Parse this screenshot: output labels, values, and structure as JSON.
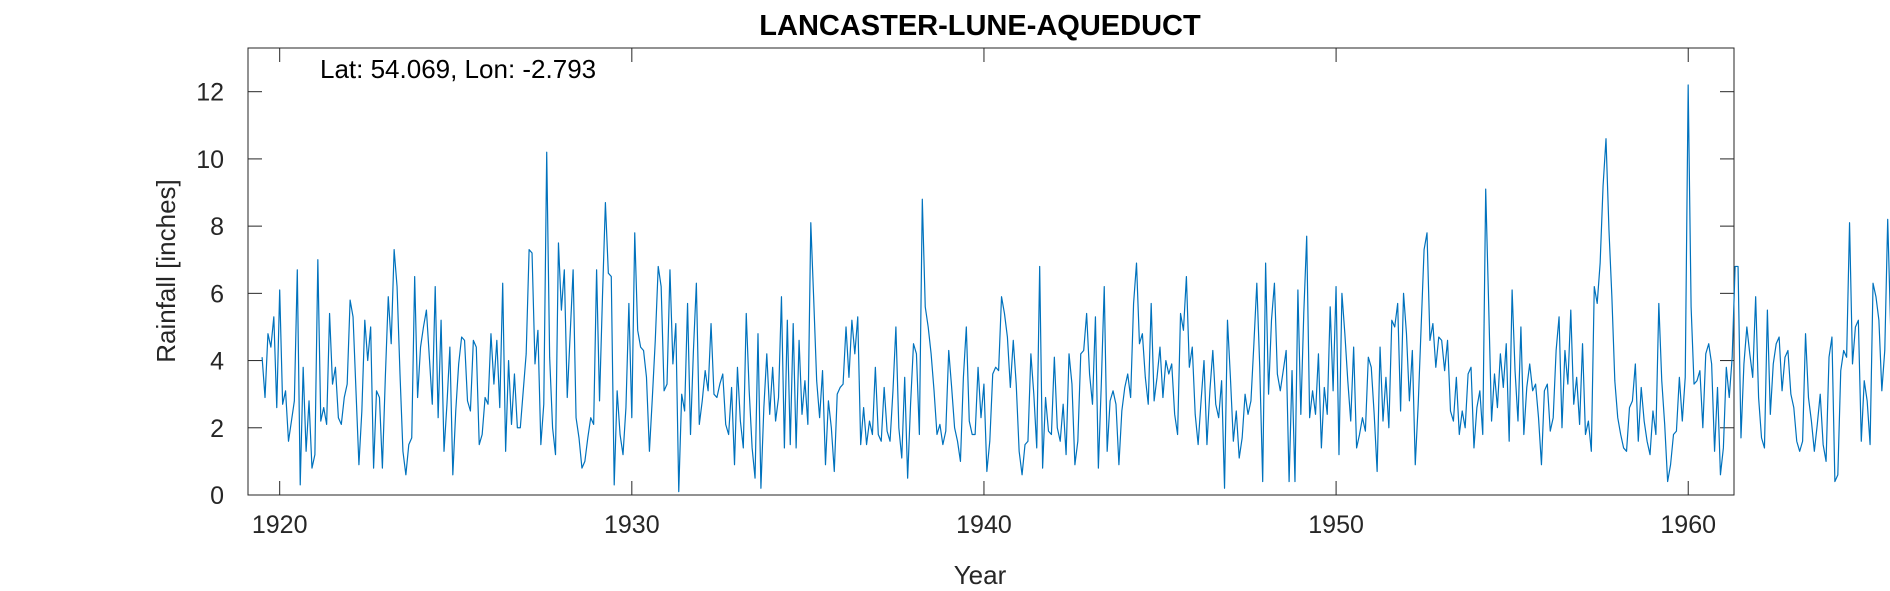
{
  "chart_data": {
    "type": "line",
    "title": "LANCASTER-LUNE-AQUEDUCT",
    "xlabel": "Year",
    "ylabel": "Rainfall [inches]",
    "annotation": "Lat: 54.069, Lon: -2.793",
    "xlim": [
      1919.1,
      1961.3
    ],
    "ylim": [
      0,
      13.3
    ],
    "xticks": [
      1920,
      1930,
      1940,
      1950,
      1960
    ],
    "yticks": [
      0,
      2,
      4,
      6,
      8,
      10,
      12
    ],
    "grid": false,
    "line_color": "#0072BD",
    "series": [
      {
        "x_start": 1919.5,
        "x_step": 0.08333,
        "values": [
          4.1,
          2.9,
          4.8,
          4.4,
          5.3,
          2.6,
          6.1,
          2.7,
          3.1,
          1.6,
          2.2,
          2.8,
          6.7,
          0.3,
          3.8,
          1.3,
          2.8,
          0.8,
          1.2,
          7.0,
          2.2,
          2.6,
          2.1,
          5.4,
          3.3,
          3.8,
          2.3,
          2.1,
          2.9,
          3.3,
          5.8,
          5.3,
          3.1,
          0.9,
          2.5,
          5.2,
          4.0,
          5.0,
          0.8,
          3.1,
          2.9,
          0.8,
          3.5,
          5.9,
          4.5,
          7.3,
          6.2,
          3.6,
          1.3,
          0.6,
          1.5,
          1.7,
          6.5,
          2.9,
          4.4,
          5.0,
          5.5,
          4.1,
          2.7,
          6.2,
          2.3,
          5.2,
          1.3,
          2.7,
          4.4,
          0.6,
          2.5,
          3.9,
          4.7,
          4.6,
          2.8,
          2.5,
          4.6,
          4.4,
          1.5,
          1.8,
          2.9,
          2.7,
          4.8,
          3.3,
          4.6,
          2.6,
          6.3,
          1.3,
          4.0,
          2.1,
          3.6,
          2.0,
          2.0,
          3.1,
          4.2,
          7.3,
          7.2,
          3.9,
          4.9,
          1.5,
          2.7,
          10.2,
          4.1,
          2.0,
          1.2,
          7.5,
          5.5,
          6.7,
          2.9,
          4.8,
          6.7,
          2.3,
          1.7,
          0.8,
          1.0,
          1.7,
          2.3,
          2.1,
          6.7,
          2.8,
          5.9,
          8.7,
          6.6,
          6.5,
          0.3,
          3.1,
          1.8,
          1.2,
          2.6,
          5.7,
          2.3,
          7.8,
          4.9,
          4.4,
          4.3,
          3.5,
          1.3,
          2.9,
          4.6,
          6.8,
          6.2,
          3.1,
          3.3,
          6.7,
          3.9,
          5.1,
          0.1,
          3.0,
          2.5,
          5.7,
          1.8,
          4.3,
          6.3,
          2.1,
          2.8,
          3.7,
          3.1,
          5.1,
          3.0,
          2.9,
          3.3,
          3.6,
          2.1,
          1.8,
          3.2,
          0.9,
          3.8,
          2.2,
          1.4,
          5.4,
          3.1,
          1.4,
          0.5,
          4.8,
          0.2,
          2.6,
          4.2,
          2.4,
          3.8,
          2.2,
          2.9,
          5.9,
          1.4,
          5.2,
          1.5,
          5.1,
          1.4,
          4.6,
          2.4,
          3.4,
          2.1,
          8.1,
          5.8,
          3.4,
          2.3,
          3.7,
          0.9,
          2.8,
          2.0,
          0.7,
          3.0,
          3.2,
          3.3,
          5.0,
          3.5,
          5.2,
          4.2,
          5.3,
          1.5,
          2.6,
          1.5,
          2.2,
          1.8,
          3.8,
          1.8,
          1.6,
          3.2,
          1.9,
          1.6,
          3.1,
          5.0,
          2.0,
          1.1,
          3.5,
          0.5,
          2.7,
          4.5,
          4.2,
          1.8,
          8.8,
          5.6,
          5.0,
          4.2,
          3.1,
          1.8,
          2.1,
          1.5,
          1.9,
          4.3,
          3.2,
          2.0,
          1.6,
          1.0,
          3.5,
          5.0,
          2.2,
          1.8,
          1.8,
          3.8,
          2.3,
          3.3,
          0.7,
          1.6,
          3.6,
          3.8,
          3.7,
          5.9,
          5.4,
          4.7,
          3.2,
          4.6,
          3.3,
          1.3,
          0.6,
          1.5,
          1.6,
          4.2,
          3.0,
          1.4,
          6.8,
          0.8,
          2.9,
          1.9,
          1.8,
          4.1,
          2.0,
          1.6,
          2.7,
          1.2,
          4.2,
          3.3,
          0.9,
          1.6,
          4.2,
          4.3,
          5.4,
          3.6,
          2.7,
          5.3,
          0.8,
          3.3,
          6.2,
          1.3,
          2.8,
          3.1,
          2.7,
          0.9,
          2.5,
          3.2,
          3.6,
          2.9,
          5.7,
          6.9,
          4.5,
          4.8,
          3.5,
          2.7,
          5.7,
          2.8,
          3.5,
          4.4,
          2.9,
          4.0,
          3.6,
          3.9,
          2.4,
          1.8,
          5.4,
          4.9,
          6.5,
          3.8,
          4.4,
          2.4,
          1.5,
          2.8,
          4.0,
          1.5,
          3.1,
          4.3,
          2.7,
          2.3,
          3.4,
          0.2,
          5.2,
          3.5,
          1.6,
          2.5,
          1.1,
          1.7,
          3.0,
          2.4,
          2.8,
          4.5,
          6.3,
          3.8,
          0.4,
          6.9,
          3.0,
          5.2,
          6.3,
          3.6,
          3.1,
          3.7,
          4.3,
          0.4,
          3.7,
          0.4,
          6.1,
          2.4,
          5.4,
          7.7,
          2.3,
          3.1,
          2.4,
          4.2,
          1.4,
          3.2,
          2.4,
          5.6,
          3.1,
          6.2,
          1.2,
          6.0,
          4.8,
          3.4,
          2.2,
          4.4,
          1.4,
          1.8,
          2.3,
          1.9,
          4.1,
          3.8,
          2.4,
          0.7,
          4.4,
          2.2,
          3.5,
          2.0,
          5.2,
          5.0,
          5.7,
          2.5,
          6.0,
          4.8,
          2.8,
          4.3,
          0.9,
          2.7,
          5.0,
          7.3,
          7.8,
          4.6,
          5.1,
          3.8,
          4.7,
          4.6,
          3.7,
          4.6,
          2.5,
          2.2,
          3.5,
          1.8,
          2.5,
          2.0,
          3.6,
          3.8,
          1.4,
          2.6,
          3.1,
          1.8,
          9.1,
          5.7,
          2.2,
          3.6,
          2.6,
          4.2,
          3.2,
          4.5,
          1.6,
          6.1,
          3.7,
          2.2,
          5.0,
          1.8,
          3.2,
          3.9,
          3.1,
          3.3,
          2.3,
          0.9,
          3.1,
          3.3,
          1.9,
          2.3,
          4.3,
          5.3,
          2.0,
          4.3,
          3.3,
          5.5,
          2.7,
          3.5,
          2.1,
          4.5,
          1.8,
          2.2,
          1.3,
          6.2,
          5.7,
          6.9,
          9.2,
          10.6,
          7.9,
          5.9,
          3.4,
          2.3,
          1.8,
          1.4,
          1.3,
          2.6,
          2.8,
          3.9,
          1.6,
          3.2,
          2.2,
          1.6,
          1.2,
          2.5,
          1.8,
          5.7,
          3.4,
          2.1,
          0.4,
          0.9,
          1.8,
          1.9,
          3.5,
          2.2,
          3.5,
          12.2,
          5.6,
          3.3,
          3.4,
          3.7,
          2.0,
          4.2,
          4.5,
          3.9,
          1.3,
          3.2,
          0.6,
          1.4,
          3.8,
          2.9,
          4.1,
          6.8,
          6.8,
          1.7,
          3.9,
          5.0,
          4.2,
          3.5,
          5.9,
          2.9,
          1.7,
          1.4,
          5.5,
          2.4,
          3.9,
          4.5,
          4.7,
          3.1,
          4.1,
          4.3,
          3.0,
          2.6,
          1.6,
          1.3,
          1.6,
          4.8,
          2.9,
          2.2,
          1.3,
          2.1,
          3.0,
          1.5,
          1.0,
          4.1,
          4.7,
          0.4,
          0.6,
          3.7,
          4.3,
          4.1,
          8.1,
          3.9,
          5.0,
          5.2,
          1.6,
          3.4,
          2.8,
          1.5,
          6.3,
          5.9,
          5.2,
          3.1,
          4.3,
          8.2,
          5.0
        ]
      }
    ]
  }
}
